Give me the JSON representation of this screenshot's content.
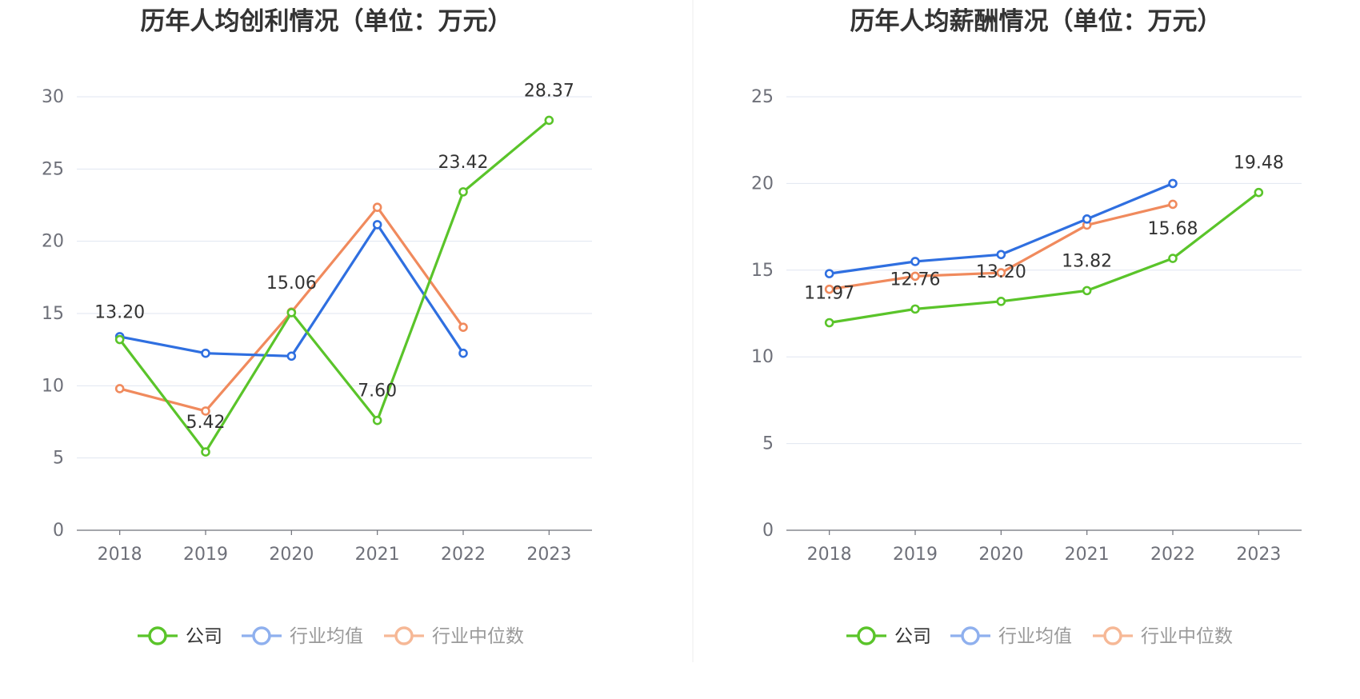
{
  "chart_data": [
    {
      "type": "line",
      "title": "历年人均创利情况（单位：万元）",
      "categories": [
        "2018",
        "2019",
        "2020",
        "2021",
        "2022",
        "2023"
      ],
      "ylim": [
        0,
        30
      ],
      "yticks": [
        "0",
        "5",
        "10",
        "15",
        "20",
        "25",
        "30"
      ],
      "grid": true,
      "legend_position": "bottom",
      "series": [
        {
          "name": "公司",
          "color": "#5ac42a",
          "values": [
            13.2,
            5.42,
            15.06,
            7.6,
            23.42,
            28.37
          ],
          "labels": [
            "13.20",
            "5.42",
            "15.06",
            "7.60",
            "23.42",
            "28.37"
          ]
        },
        {
          "name": "行业均值",
          "color": "#2f6fe0",
          "values": [
            13.4,
            12.25,
            12.05,
            21.15,
            12.25,
            null
          ]
        },
        {
          "name": "行业中位数",
          "color": "#f08a5d",
          "values": [
            9.8,
            8.25,
            15.1,
            22.35,
            14.05,
            null
          ]
        }
      ]
    },
    {
      "type": "line",
      "title": "历年人均薪酬情况（单位：万元）",
      "categories": [
        "2018",
        "2019",
        "2020",
        "2021",
        "2022",
        "2023"
      ],
      "ylim": [
        0,
        25
      ],
      "yticks": [
        "0",
        "5",
        "10",
        "15",
        "20",
        "25"
      ],
      "grid": true,
      "legend_position": "bottom",
      "series": [
        {
          "name": "公司",
          "color": "#5ac42a",
          "values": [
            11.97,
            12.76,
            13.2,
            13.82,
            15.68,
            19.48
          ],
          "labels": [
            "11.97",
            "12.76",
            "13.20",
            "13.82",
            "15.68",
            "19.48"
          ]
        },
        {
          "name": "行业均值",
          "color": "#2f6fe0",
          "values": [
            14.8,
            15.5,
            15.9,
            17.95,
            20.0,
            null
          ]
        },
        {
          "name": "行业中位数",
          "color": "#f08a5d",
          "values": [
            13.9,
            14.65,
            14.85,
            17.6,
            18.8,
            null
          ]
        }
      ]
    }
  ]
}
